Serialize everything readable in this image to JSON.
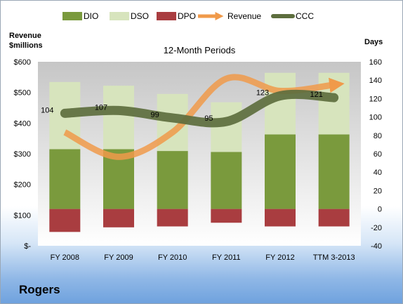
{
  "chart_data": {
    "type": "bar",
    "title": "12-Month Periods",
    "categories": [
      "FY 2008",
      "FY 2009",
      "FY 2010",
      "FY 2011",
      "FY 2012",
      "TTM 3-2013"
    ],
    "left_axis": {
      "title_line1": "Revenue",
      "title_line2": "$millions",
      "ticks": [
        "$-",
        "$100",
        "$200",
        "$300",
        "$400",
        "$500",
        "$600"
      ],
      "ylim": [
        0,
        600
      ]
    },
    "right_axis": {
      "title": "Days",
      "ticks": [
        "-40",
        "-20",
        "0",
        "20",
        "40",
        "60",
        "80",
        "100",
        "120",
        "140",
        "160"
      ],
      "ylim": [
        -40,
        160
      ]
    },
    "series": [
      {
        "name": "DIO",
        "axis": "right",
        "type": "stacked-bar",
        "color": "#7a9a3d",
        "values": [
          65,
          65,
          63,
          62,
          81,
          81
        ]
      },
      {
        "name": "DSO",
        "axis": "right",
        "type": "stacked-bar",
        "color": "#d7e4bd",
        "values": [
          73,
          69,
          62,
          54,
          67,
          67
        ]
      },
      {
        "name": "DPO",
        "axis": "right",
        "type": "negative-bar",
        "color": "#a93d40",
        "values": [
          -25,
          -20,
          -19,
          -15,
          -19,
          -19
        ]
      },
      {
        "name": "Revenue",
        "axis": "left",
        "type": "line",
        "color": "#f09a4a",
        "values": [
          370,
          290,
          370,
          545,
          505,
          525
        ]
      },
      {
        "name": "CCC",
        "axis": "right",
        "type": "line",
        "color": "#5d6e3e",
        "values": [
          104,
          107,
          99,
          95,
          123,
          121
        ],
        "labels": [
          "104",
          "107",
          "99",
          "95",
          "123",
          "121"
        ]
      }
    ],
    "legend_position": "top",
    "grid": false
  },
  "company": "Rogers"
}
